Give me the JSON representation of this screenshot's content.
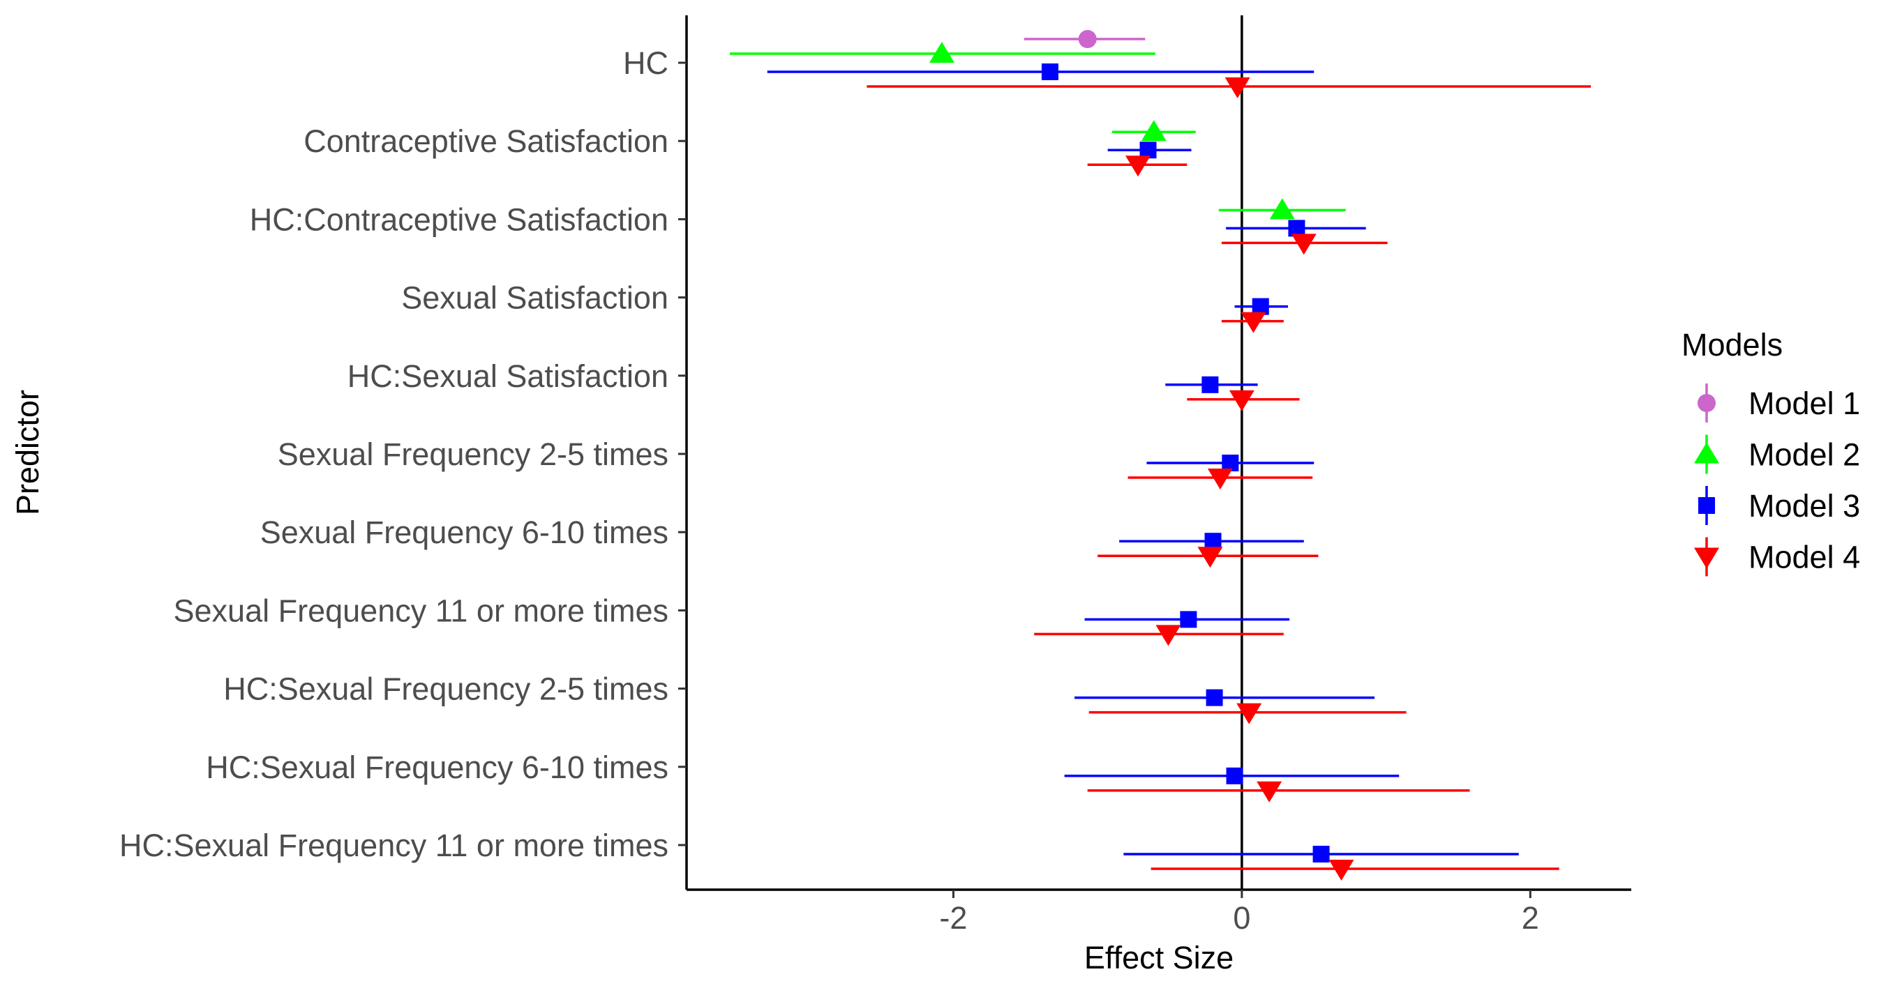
{
  "chart_data": {
    "type": "forest",
    "xlabel": "Effect Size",
    "ylabel": "Predictor",
    "xlim": [
      -3.85,
      2.7
    ],
    "x_ticks": [
      -2,
      0,
      2
    ],
    "x_tick_labels": [
      "-2",
      "0",
      "2"
    ],
    "reference_line_x": 0,
    "legend_title": "Models",
    "legend_position": "right",
    "predictors": [
      "HC",
      "Contraceptive Satisfaction",
      "HC:Contraceptive Satisfaction",
      "Sexual Satisfaction",
      "HC:Sexual Satisfaction",
      "Sexual Frequency 2-5 times",
      "Sexual Frequency 6-10 times",
      "Sexual Frequency 11 or more times",
      "HC:Sexual Frequency 2-5 times",
      "HC:Sexual Frequency 6-10 times",
      "HC:Sexual Frequency 11 or more times"
    ],
    "series": [
      {
        "name": "Model 1",
        "color": "#cc66cc",
        "shape": "circle",
        "points": [
          {
            "predictor": "HC",
            "estimate": -1.07,
            "low": -1.51,
            "high": -0.67
          }
        ]
      },
      {
        "name": "Model 2",
        "color": "#00ff00",
        "shape": "triangle-up",
        "points": [
          {
            "predictor": "HC",
            "estimate": -2.08,
            "low": -3.55,
            "high": -0.6
          },
          {
            "predictor": "Contraceptive Satisfaction",
            "estimate": -0.61,
            "low": -0.9,
            "high": -0.32
          },
          {
            "predictor": "HC:Contraceptive Satisfaction",
            "estimate": 0.28,
            "low": -0.16,
            "high": 0.72
          }
        ]
      },
      {
        "name": "Model 3",
        "color": "#0000ff",
        "shape": "square",
        "points": [
          {
            "predictor": "HC",
            "estimate": -1.33,
            "low": -3.29,
            "high": 0.5
          },
          {
            "predictor": "Contraceptive Satisfaction",
            "estimate": -0.65,
            "low": -0.93,
            "high": -0.35
          },
          {
            "predictor": "HC:Contraceptive Satisfaction",
            "estimate": 0.38,
            "low": -0.11,
            "high": 0.86
          },
          {
            "predictor": "Sexual Satisfaction",
            "estimate": 0.13,
            "low": -0.05,
            "high": 0.32
          },
          {
            "predictor": "HC:Sexual Satisfaction",
            "estimate": -0.22,
            "low": -0.53,
            "high": 0.11
          },
          {
            "predictor": "Sexual Frequency 2-5 times",
            "estimate": -0.08,
            "low": -0.66,
            "high": 0.5
          },
          {
            "predictor": "Sexual Frequency 6-10 times",
            "estimate": -0.2,
            "low": -0.85,
            "high": 0.43
          },
          {
            "predictor": "Sexual Frequency 11 or more times",
            "estimate": -0.37,
            "low": -1.09,
            "high": 0.33
          },
          {
            "predictor": "HC:Sexual Frequency 2-5 times",
            "estimate": -0.19,
            "low": -1.16,
            "high": 0.92
          },
          {
            "predictor": "HC:Sexual Frequency 6-10 times",
            "estimate": -0.05,
            "low": -1.23,
            "high": 1.09
          },
          {
            "predictor": "HC:Sexual Frequency 11 or more times",
            "estimate": 0.55,
            "low": -0.82,
            "high": 1.92
          }
        ]
      },
      {
        "name": "Model 4",
        "color": "#ff0000",
        "shape": "triangle-down",
        "points": [
          {
            "predictor": "HC",
            "estimate": -0.03,
            "low": -2.6,
            "high": 2.42
          },
          {
            "predictor": "Contraceptive Satisfaction",
            "estimate": -0.72,
            "low": -1.07,
            "high": -0.38
          },
          {
            "predictor": "HC:Contraceptive Satisfaction",
            "estimate": 0.43,
            "low": -0.14,
            "high": 1.01
          },
          {
            "predictor": "Sexual Satisfaction",
            "estimate": 0.08,
            "low": -0.14,
            "high": 0.29
          },
          {
            "predictor": "HC:Sexual Satisfaction",
            "estimate": 0.0,
            "low": -0.38,
            "high": 0.4
          },
          {
            "predictor": "Sexual Frequency 2-5 times",
            "estimate": -0.15,
            "low": -0.79,
            "high": 0.49
          },
          {
            "predictor": "Sexual Frequency 6-10 times",
            "estimate": -0.22,
            "low": -1.0,
            "high": 0.53
          },
          {
            "predictor": "Sexual Frequency 11 or more times",
            "estimate": -0.51,
            "low": -1.44,
            "high": 0.29
          },
          {
            "predictor": "HC:Sexual Frequency 2-5 times",
            "estimate": 0.05,
            "low": -1.06,
            "high": 1.14
          },
          {
            "predictor": "HC:Sexual Frequency 6-10 times",
            "estimate": 0.19,
            "low": -1.07,
            "high": 1.58
          },
          {
            "predictor": "HC:Sexual Frequency 11 or more times",
            "estimate": 0.69,
            "low": -0.63,
            "high": 2.2
          }
        ]
      }
    ]
  }
}
